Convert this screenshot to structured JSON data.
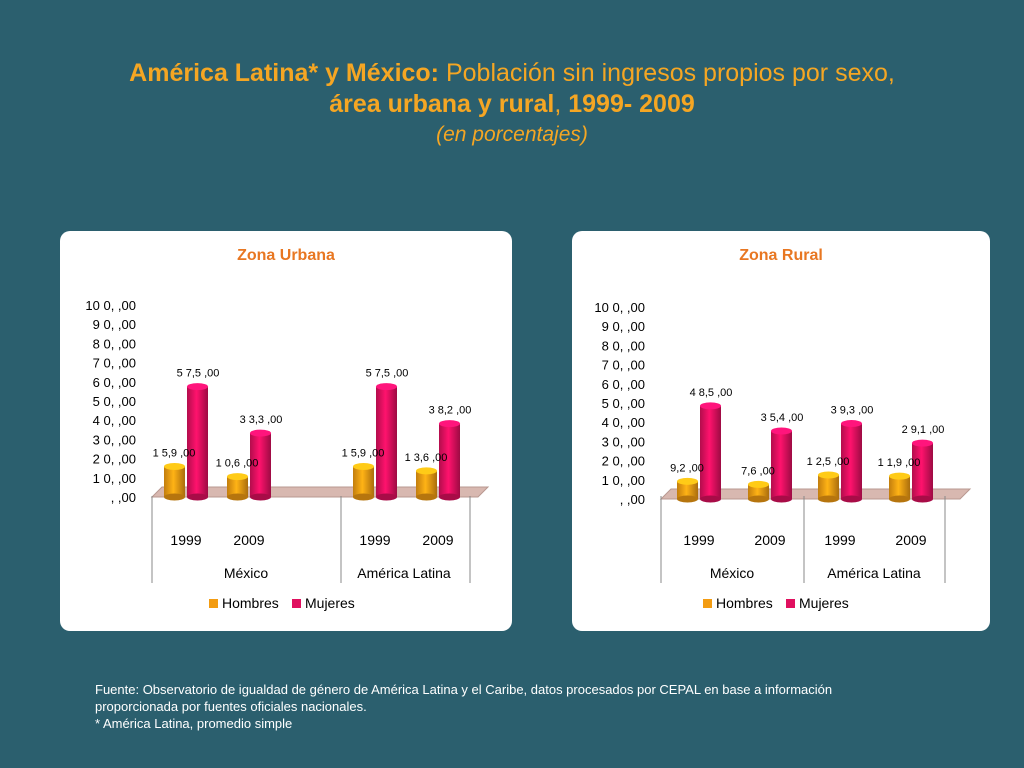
{
  "title": {
    "part_bold": "América Latina* y México:",
    "part_plain": " Población sin ingresos propios por sexo,",
    "line2_bold_a": "área urbana y rural",
    "line2_plain": ",  ",
    "line2_bold_b": "1999- 2009",
    "line3": "(en porcentajes)"
  },
  "colors": {
    "background": "#2b5f6e",
    "title": "#f5a623",
    "hombres": "#f39c12",
    "mujeres": "#e0105f",
    "chart_title": "#e87722"
  },
  "chart_data": [
    {
      "type": "bar",
      "title": "Zona Urbana",
      "groups": [
        "México",
        "América Latina"
      ],
      "categories": [
        "1999",
        "2009",
        "1999",
        "2009"
      ],
      "y_tick_labels": [
        "10 0, ,00",
        "9 0, ,00",
        "8 0, ,00",
        "7 0, ,00",
        "6 0, ,00",
        "5 0, ,00",
        "4 0, ,00",
        "3 0, ,00",
        "2 0, ,00",
        "1 0, ,00",
        ", ,00"
      ],
      "ylim": [
        0,
        100
      ],
      "series": [
        {
          "name": "Hombres",
          "values": [
            15.9,
            10.6,
            15.9,
            13.6
          ],
          "labels": [
            "1 5,9 ,00",
            "1 0,6 ,00",
            "1 5,9 ,00",
            "1 3,6 ,00"
          ]
        },
        {
          "name": "Mujeres",
          "values": [
            57.5,
            33.3,
            57.5,
            38.2
          ],
          "labels": [
            "5 7,5 ,00",
            "3 3,3 ,00",
            "5 7,5 ,00",
            "3 8,2 ,00"
          ]
        }
      ],
      "legend": [
        "Hombres",
        "Mujeres"
      ]
    },
    {
      "type": "bar",
      "title": "Zona Rural",
      "groups": [
        "México",
        "América Latina"
      ],
      "categories": [
        "1999",
        "2009",
        "1999",
        "2009"
      ],
      "y_tick_labels": [
        "10 0, ,00",
        "9 0, ,00",
        "8 0, ,00",
        "7 0, ,00",
        "6 0, ,00",
        "5 0, ,00",
        "4 0, ,00",
        "3 0, ,00",
        "2 0, ,00",
        "1 0, ,00",
        ", ,00"
      ],
      "ylim": [
        0,
        100
      ],
      "series": [
        {
          "name": "Hombres",
          "values": [
            9.2,
            7.6,
            12.5,
            11.9
          ],
          "labels": [
            "9,2 ,00",
            "7,6 ,00",
            "1 2,5 ,00",
            "1 1,9 ,00"
          ]
        },
        {
          "name": "Mujeres",
          "values": [
            48.5,
            35.4,
            39.3,
            29.1
          ],
          "labels": [
            "4 8,5 ,00",
            "3 5,4 ,00",
            "3 9,3 ,00",
            "2 9,1 ,00"
          ]
        }
      ],
      "legend": [
        "Hombres",
        "Mujeres"
      ]
    }
  ],
  "source": {
    "line1": "Fuente: Observatorio de igualdad de género de América Latina y el Caribe, datos procesados por CEPAL en base a información",
    "line2": "proporcionada por fuentes oficiales nacionales.",
    "line3": "* América Latina, promedio simple"
  }
}
